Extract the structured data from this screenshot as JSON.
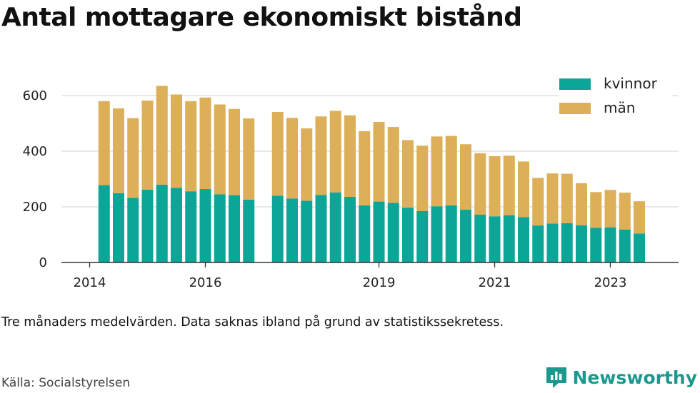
{
  "title": "Antal mottagare ekonomiskt bistånd",
  "note": "Tre månaders medelvärden. Data saknas ibland på grund av statistikssekretess.",
  "source": "Källa: Socialstyrelsen",
  "brand": {
    "name": "Newsworthy",
    "icon": "newsworthy-logo-icon"
  },
  "colors": {
    "kvinnor": "#0ca597",
    "man": "#dcaf58",
    "grid": "#d9d9d9",
    "axis": "#333333"
  },
  "chart_data": {
    "type": "bar",
    "stacked": true,
    "title": "Antal mottagare ekonomiskt bistånd",
    "xlabel": "",
    "ylabel": "",
    "ylim": [
      0,
      700
    ],
    "yticks": [
      0,
      200,
      400,
      600
    ],
    "xlim": [
      2014.0,
      2024.0
    ],
    "xticks": [
      {
        "value": 2014.0,
        "label": "2014"
      },
      {
        "value": 2016.0,
        "label": "2016"
      },
      {
        "value": 2019.0,
        "label": "2019"
      },
      {
        "value": 2021.0,
        "label": "2021"
      },
      {
        "value": 2023.0,
        "label": "2023"
      }
    ],
    "grid": true,
    "legend": "top-right",
    "x": [
      2014.25,
      2014.5,
      2014.75,
      2015.0,
      2015.25,
      2015.5,
      2015.75,
      2016.0,
      2016.25,
      2016.5,
      2016.75,
      2017.25,
      2017.5,
      2017.75,
      2018.0,
      2018.25,
      2018.5,
      2018.75,
      2019.0,
      2019.25,
      2019.5,
      2019.75,
      2020.0,
      2020.25,
      2020.5,
      2020.75,
      2021.0,
      2021.25,
      2021.5,
      2021.75,
      2022.0,
      2022.25,
      2022.5,
      2022.75,
      2023.0,
      2023.25,
      2023.5
    ],
    "series": [
      {
        "name": "kvinnor",
        "color": "#0ca597",
        "values": [
          278,
          249,
          232,
          262,
          280,
          268,
          256,
          264,
          245,
          242,
          226,
          240,
          230,
          222,
          243,
          252,
          236,
          205,
          219,
          214,
          197,
          185,
          202,
          205,
          190,
          172,
          166,
          170,
          163,
          133,
          140,
          141,
          134,
          125,
          126,
          118,
          104
        ]
      },
      {
        "name": "män",
        "color": "#dcaf58",
        "values": [
          302,
          305,
          287,
          320,
          355,
          336,
          324,
          329,
          323,
          310,
          292,
          301,
          290,
          260,
          282,
          293,
          293,
          267,
          286,
          273,
          243,
          235,
          251,
          250,
          235,
          221,
          216,
          214,
          200,
          171,
          180,
          178,
          151,
          128,
          135,
          133,
          116
        ]
      }
    ]
  }
}
